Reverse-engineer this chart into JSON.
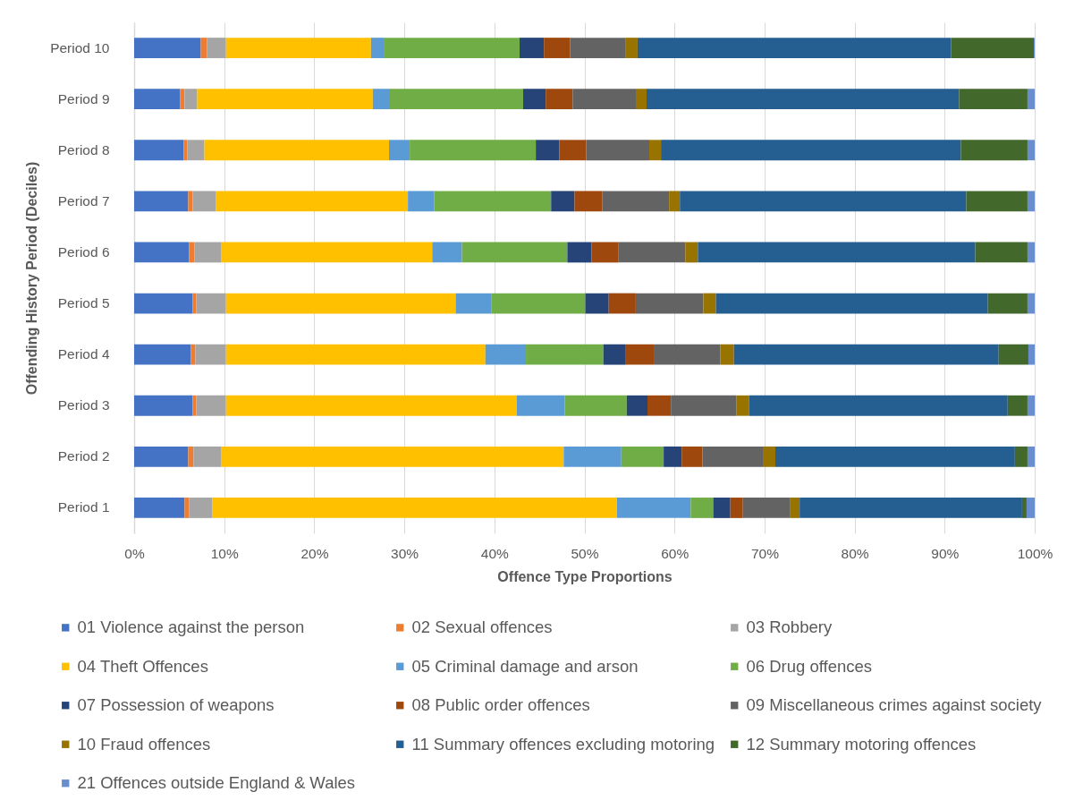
{
  "chart_data": {
    "type": "bar",
    "orientation": "horizontal",
    "stacked": true,
    "xlabel": "Offence Type Proportions",
    "ylabel": "Offending History Period (Deciles)",
    "categories": [
      "Period 10",
      "Period 9",
      "Period 8",
      "Period 7",
      "Period 6",
      "Period 5",
      "Period 4",
      "Period 3",
      "Period 2",
      "Period 1"
    ],
    "xlim": [
      0,
      100
    ],
    "xticks": [
      {
        "value": 0,
        "label": "0%"
      },
      {
        "value": 10,
        "label": "10%"
      },
      {
        "value": 20,
        "label": "20%"
      },
      {
        "value": 30,
        "label": "30%"
      },
      {
        "value": 40,
        "label": "40%"
      },
      {
        "value": 50,
        "label": "50%"
      },
      {
        "value": 60,
        "label": "60%"
      },
      {
        "value": 70,
        "label": "70%"
      },
      {
        "value": 80,
        "label": "80%"
      },
      {
        "value": 90,
        "label": "90%"
      },
      {
        "value": 100,
        "label": "100%"
      }
    ],
    "grid": "x",
    "legend": "bottom",
    "series": [
      {
        "name": "01 Violence against the person",
        "color": "#4472c4",
        "values": [
          7.4,
          5.1,
          5.5,
          6.0,
          6.1,
          6.5,
          6.3,
          6.5,
          6.0,
          5.6
        ]
      },
      {
        "name": "02 Sexual offences",
        "color": "#ed7d31",
        "values": [
          0.7,
          0.5,
          0.4,
          0.5,
          0.6,
          0.4,
          0.5,
          0.4,
          0.6,
          0.5
        ]
      },
      {
        "name": "03 Robbery",
        "color": "#a5a5a5",
        "values": [
          2.1,
          1.4,
          1.9,
          2.6,
          3.0,
          3.3,
          3.4,
          3.3,
          3.1,
          2.6
        ]
      },
      {
        "name": "04 Theft Offences",
        "color": "#ffc000",
        "values": [
          16.1,
          19.5,
          20.5,
          21.3,
          23.4,
          25.5,
          28.8,
          32.3,
          38.0,
          44.9
        ]
      },
      {
        "name": "05 Criminal damage and arson",
        "color": "#5b9bd5",
        "values": [
          1.5,
          1.9,
          2.3,
          2.9,
          3.3,
          4.0,
          4.5,
          5.3,
          6.4,
          8.2
        ]
      },
      {
        "name": "06 Drug offences",
        "color": "#70ad47",
        "values": [
          15.0,
          14.8,
          14.0,
          13.0,
          11.7,
          10.4,
          8.6,
          6.9,
          4.7,
          2.5
        ]
      },
      {
        "name": "07 Possession of weapons",
        "color": "#264478",
        "values": [
          2.7,
          2.5,
          2.6,
          2.6,
          2.7,
          2.6,
          2.5,
          2.3,
          2.0,
          1.9
        ]
      },
      {
        "name": "08 Public order offences",
        "color": "#9e480e",
        "values": [
          2.9,
          3.0,
          3.0,
          3.1,
          3.0,
          3.0,
          3.1,
          2.6,
          2.3,
          1.4
        ]
      },
      {
        "name": "09 Miscellaneous crimes against society",
        "color": "#636363",
        "values": [
          6.2,
          7.1,
          7.0,
          7.4,
          7.4,
          7.5,
          7.4,
          7.3,
          6.8,
          5.2
        ]
      },
      {
        "name": "10 Fraud offences",
        "color": "#997300",
        "values": [
          1.3,
          1.1,
          1.3,
          1.2,
          1.4,
          1.4,
          1.5,
          1.4,
          1.3,
          1.1
        ]
      },
      {
        "name": "11 Summary offences excluding motoring",
        "color": "#255e91",
        "values": [
          34.8,
          34.7,
          33.3,
          31.8,
          30.8,
          30.2,
          29.4,
          28.7,
          26.6,
          24.7
        ]
      },
      {
        "name": "12 Summary motoring offences",
        "color": "#43682b",
        "values": [
          9.2,
          7.6,
          7.4,
          6.8,
          5.8,
          4.4,
          3.3,
          2.2,
          1.4,
          0.5
        ]
      },
      {
        "name": "21 Offences outside England & Wales",
        "color": "#698ed0",
        "values": [
          0.1,
          0.8,
          0.8,
          0.8,
          0.8,
          0.8,
          0.7,
          0.8,
          0.8,
          0.9
        ]
      }
    ]
  }
}
